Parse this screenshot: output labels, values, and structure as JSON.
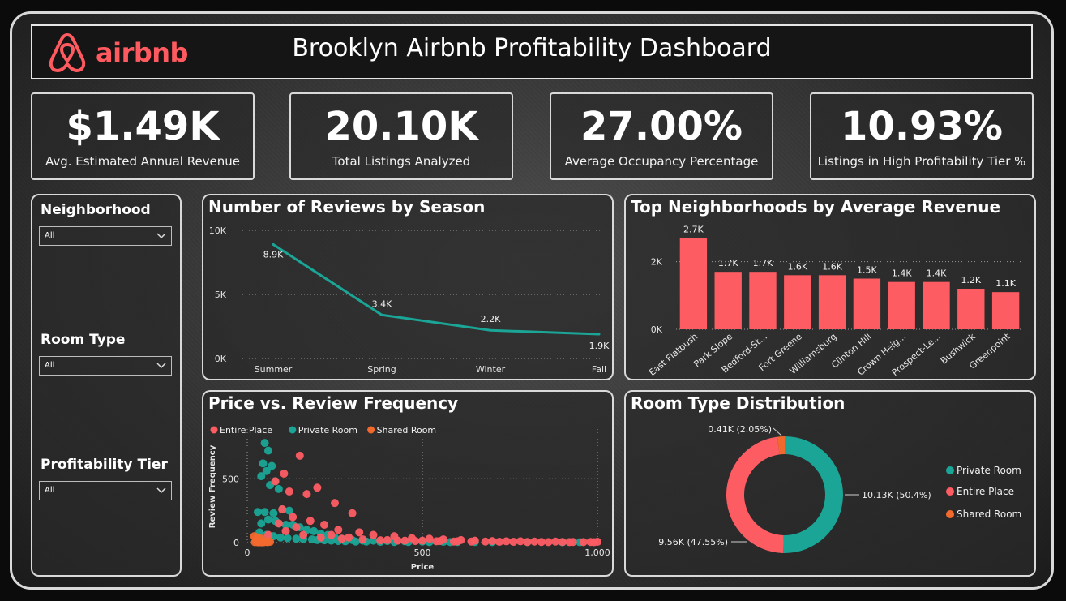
{
  "header": {
    "logo_text": "airbnb",
    "title": "Brooklyn Airbnb Profitability Dashboard",
    "brand_color": "#ff5a5f"
  },
  "kpis": [
    {
      "value": "$1.49K",
      "label": "Avg. Estimated Annual Revenue"
    },
    {
      "value": "20.10K",
      "label": "Total Listings Analyzed"
    },
    {
      "value": "27.00%",
      "label": "Average Occupancy Percentage"
    },
    {
      "value": "10.93%",
      "label": "Listings in High Profitability Tier %"
    }
  ],
  "filters": [
    {
      "label": "Neighborhood",
      "value": "All"
    },
    {
      "label": "Room Type",
      "value": "All"
    },
    {
      "label": "Profitability Tier",
      "value": "All"
    }
  ],
  "colors": {
    "teal": "#1aa596",
    "coral": "#fd5c63",
    "orange": "#f2692e"
  },
  "chart_data": [
    {
      "id": "reviews_by_season",
      "type": "line",
      "title": "Number of Reviews by Season",
      "categories": [
        "Summer",
        "Spring",
        "Winter",
        "Fall"
      ],
      "values": [
        8900,
        3400,
        2200,
        1900
      ],
      "data_labels": [
        "8.9K",
        "3.4K",
        "2.2K",
        "1.9K"
      ],
      "y_ticks": [
        "0K",
        "5K",
        "10K"
      ],
      "ylim": [
        0,
        10000
      ],
      "grid": true
    },
    {
      "id": "top_neighborhoods",
      "type": "bar",
      "title": "Top Neighborhoods by Average Revenue",
      "categories": [
        "East Flatbush",
        "Park Slope",
        "Bedford-St...",
        "Fort Greene",
        "Williamsburg",
        "Clinton Hill",
        "Crown Heig...",
        "Prospect-Le...",
        "Bushwick",
        "Greenpoint"
      ],
      "values": [
        2700,
        1700,
        1700,
        1600,
        1600,
        1500,
        1400,
        1400,
        1200,
        1100
      ],
      "data_labels": [
        "2.7K",
        "1.7K",
        "1.7K",
        "1.6K",
        "1.6K",
        "1.5K",
        "1.4K",
        "1.4K",
        "1.2K",
        "1.1K"
      ],
      "y_ticks": [
        "0K",
        "2K"
      ],
      "ylim": [
        0,
        3000
      ],
      "grid": true
    },
    {
      "id": "price_vs_reviews",
      "type": "scatter",
      "title": "Price vs. Review Frequency",
      "xlabel": "Price",
      "ylabel": "Review Frequency",
      "x_ticks": [
        "0",
        "500",
        "1,000"
      ],
      "y_ticks": [
        "0",
        "500"
      ],
      "xlim": [
        0,
        1000
      ],
      "ylim": [
        0,
        800
      ],
      "legend_position": "top-left",
      "series": [
        {
          "name": "Entire Place",
          "color": "#fd5c63",
          "points": [
            [
              150,
              680
            ],
            [
              105,
              540
            ],
            [
              200,
              430
            ],
            [
              80,
              480
            ],
            [
              120,
              400
            ],
            [
              170,
              380
            ],
            [
              250,
              310
            ],
            [
              300,
              230
            ],
            [
              100,
              260
            ],
            [
              130,
              200
            ],
            [
              180,
              170
            ],
            [
              220,
              140
            ],
            [
              260,
              100
            ],
            [
              320,
              80
            ],
            [
              360,
              60
            ],
            [
              420,
              50
            ],
            [
              470,
              35
            ],
            [
              520,
              30
            ],
            [
              560,
              25
            ],
            [
              610,
              20
            ],
            [
              650,
              15
            ],
            [
              700,
              12
            ],
            [
              740,
              10
            ],
            [
              780,
              10
            ],
            [
              820,
              8
            ],
            [
              880,
              8
            ],
            [
              930,
              5
            ],
            [
              980,
              5
            ],
            [
              1000,
              6
            ],
            [
              140,
              120
            ],
            [
              90,
              150
            ],
            [
              240,
              60
            ],
            [
              290,
              40
            ],
            [
              400,
              20
            ],
            [
              450,
              15
            ],
            [
              500,
              15
            ],
            [
              550,
              12
            ],
            [
              600,
              10
            ],
            [
              680,
              8
            ],
            [
              760,
              6
            ],
            [
              840,
              5
            ],
            [
              900,
              5
            ],
            [
              960,
              4
            ],
            [
              60,
              60
            ],
            [
              110,
              90
            ],
            [
              160,
              60
            ],
            [
              210,
              40
            ],
            [
              270,
              30
            ],
            [
              330,
              25
            ],
            [
              380,
              18
            ],
            [
              430,
              15
            ],
            [
              480,
              12
            ],
            [
              540,
              10
            ],
            [
              590,
              8
            ],
            [
              640,
              8
            ],
            [
              720,
              6
            ],
            [
              800,
              5
            ],
            [
              860,
              4
            ],
            [
              920,
              4
            ],
            [
              990,
              3
            ]
          ]
        },
        {
          "name": "Private Room",
          "color": "#1aa596",
          "points": [
            [
              50,
              780
            ],
            [
              60,
              720
            ],
            [
              45,
              620
            ],
            [
              70,
              600
            ],
            [
              55,
              560
            ],
            [
              40,
              520
            ],
            [
              80,
              480
            ],
            [
              65,
              450
            ],
            [
              90,
              420
            ],
            [
              30,
              240
            ],
            [
              50,
              240
            ],
            [
              75,
              230
            ],
            [
              100,
              260
            ],
            [
              120,
              250
            ],
            [
              60,
              180
            ],
            [
              80,
              170
            ],
            [
              40,
              150
            ],
            [
              90,
              150
            ],
            [
              110,
              140
            ],
            [
              130,
              140
            ],
            [
              150,
              120
            ],
            [
              170,
              100
            ],
            [
              190,
              90
            ],
            [
              210,
              70
            ],
            [
              230,
              60
            ],
            [
              250,
              40
            ],
            [
              270,
              30
            ],
            [
              300,
              20
            ],
            [
              330,
              15
            ],
            [
              360,
              15
            ],
            [
              400,
              12
            ],
            [
              450,
              10
            ],
            [
              500,
              8
            ],
            [
              560,
              6
            ],
            [
              600,
              5
            ],
            [
              650,
              5
            ],
            [
              700,
              4
            ],
            [
              800,
              4
            ],
            [
              900,
              3
            ],
            [
              950,
              3
            ],
            [
              35,
              80
            ],
            [
              55,
              60
            ],
            [
              75,
              50
            ],
            [
              95,
              40
            ],
            [
              115,
              35
            ],
            [
              140,
              30
            ],
            [
              160,
              28
            ],
            [
              185,
              25
            ],
            [
              200,
              20
            ],
            [
              220,
              18
            ],
            [
              240,
              15
            ],
            [
              260,
              12
            ],
            [
              280,
              10
            ],
            [
              310,
              8
            ],
            [
              340,
              8
            ],
            [
              380,
              6
            ],
            [
              420,
              5
            ],
            [
              460,
              5
            ],
            [
              520,
              4
            ],
            [
              580,
              4
            ]
          ]
        },
        {
          "name": "Shared Room",
          "color": "#f2692e",
          "points": [
            [
              20,
              50
            ],
            [
              30,
              40
            ],
            [
              40,
              30
            ],
            [
              25,
              20
            ],
            [
              35,
              15
            ],
            [
              45,
              10
            ],
            [
              55,
              8
            ],
            [
              65,
              6
            ],
            [
              28,
              5
            ],
            [
              38,
              4
            ],
            [
              48,
              3
            ],
            [
              58,
              3
            ],
            [
              22,
              3
            ],
            [
              32,
              2
            ],
            [
              42,
              2
            ]
          ]
        }
      ]
    },
    {
      "id": "room_type_distribution",
      "type": "pie",
      "title": "Room Type Distribution",
      "labels": [
        "Private Room",
        "Entire Place",
        "Shared Room"
      ],
      "values": [
        10130,
        9560,
        410
      ],
      "percentages": [
        50.4,
        47.55,
        2.05
      ],
      "data_labels": [
        "10.13K (50.4%)",
        "9.56K (47.55%)",
        "0.41K (2.05%)"
      ],
      "colors": [
        "#1aa596",
        "#fd5c63",
        "#f2692e"
      ],
      "legend_position": "right",
      "donut": true
    }
  ]
}
